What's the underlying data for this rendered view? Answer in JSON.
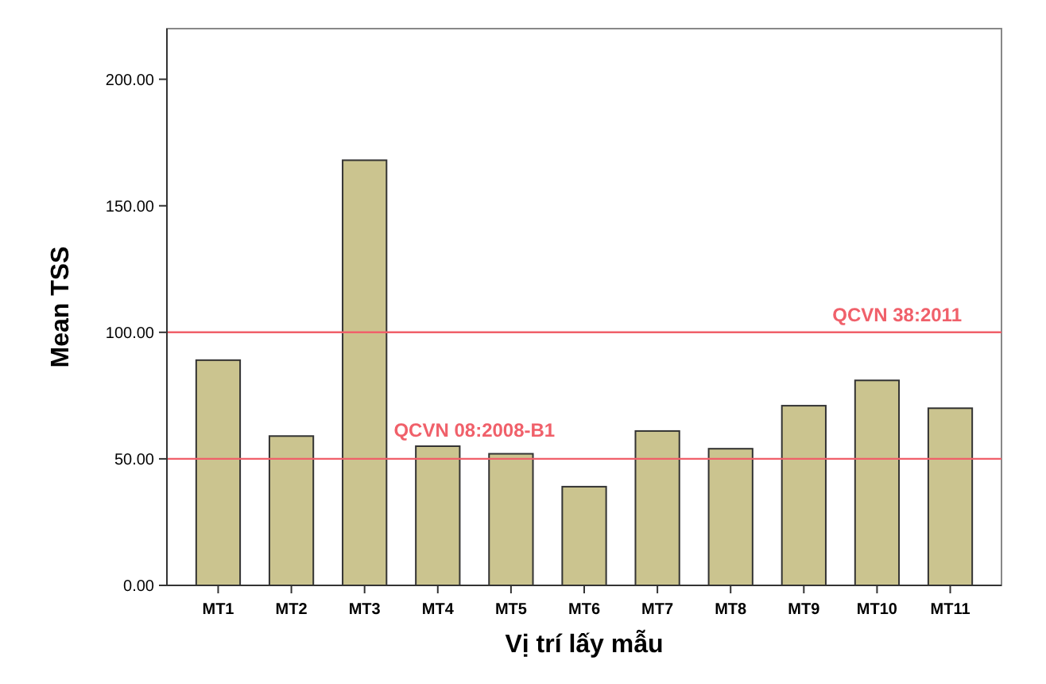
{
  "chart_data": {
    "type": "bar",
    "xlabel": "Vị trí lấy mẫu",
    "ylabel": "Mean TSS",
    "categories": [
      "MT1",
      "MT2",
      "MT3",
      "MT4",
      "MT5",
      "MT6",
      "MT7",
      "MT8",
      "MT9",
      "MT10",
      "MT11"
    ],
    "values": [
      89,
      59,
      168,
      55,
      52,
      39,
      61,
      54,
      71,
      81,
      70
    ],
    "color": "#cbc48f",
    "ylim": [
      0,
      220
    ],
    "yticks": [
      {
        "value": 0,
        "label": "0.00"
      },
      {
        "value": 50,
        "label": "50.00"
      },
      {
        "value": 100,
        "label": "100.00"
      },
      {
        "value": 150,
        "label": "150.00"
      },
      {
        "value": 200,
        "label": "200.00"
      }
    ],
    "ref_lines": [
      {
        "axis": "y",
        "value": 100,
        "color": "#f0606a"
      },
      {
        "axis": "y",
        "value": 50,
        "color": "#f0606a"
      }
    ],
    "annotations": [
      "QCVN 38:2011",
      "QCVN 08:2008-B1"
    ],
    "grid": false
  }
}
